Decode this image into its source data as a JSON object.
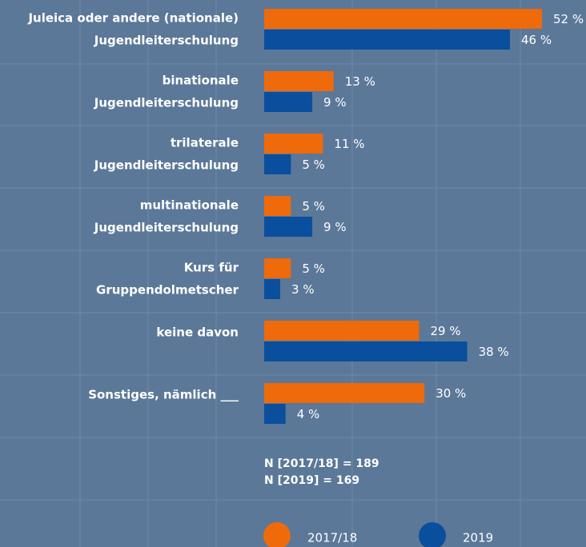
{
  "chart_data": {
    "type": "bar",
    "orientation": "horizontal",
    "categories": [
      [
        "Juleica oder andere (nationale)",
        "Jugendleiterschulung"
      ],
      [
        "binationale",
        "Jugendleiterschulung"
      ],
      [
        "trilaterale",
        "Jugendleiterschulung"
      ],
      [
        "multinationale",
        "Jugendleiterschulung"
      ],
      [
        "Kurs für",
        "Gruppendolmetscher"
      ],
      [
        "keine davon"
      ],
      [
        "Sonstiges, nämlich ___"
      ]
    ],
    "series": [
      {
        "name": "2017/18",
        "color": "#ee6a0a",
        "values": [
          52,
          13,
          11,
          5,
          5,
          29,
          30
        ],
        "value_labels": [
          "52 %",
          "13 %",
          "11 %",
          "5 %",
          "5 %",
          "29 %",
          "30 %"
        ]
      },
      {
        "name": "2019",
        "color": "#0a4e9e",
        "values": [
          46,
          9,
          5,
          9,
          3,
          38,
          4
        ],
        "value_labels": [
          "46 %",
          "9 %",
          "5 %",
          "9 %",
          "3 %",
          "38 %",
          "4 %"
        ]
      }
    ],
    "xlim": [
      0,
      60
    ],
    "notes": [
      "N [2017/18] = 189",
      "N [2019] = 169"
    ]
  }
}
